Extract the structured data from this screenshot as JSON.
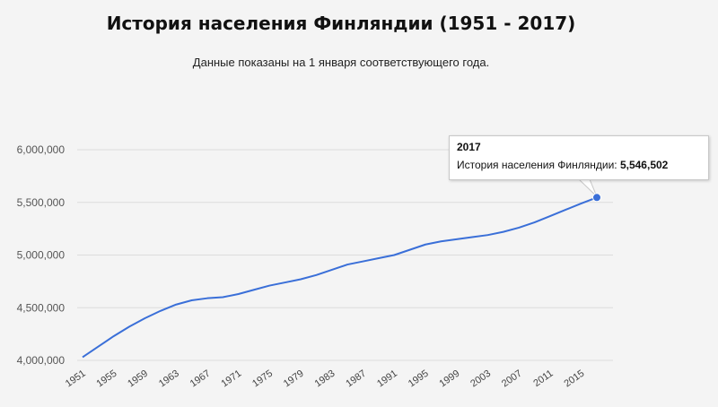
{
  "title": "История населения Финляндии (1951 - 2017)",
  "subtitle": "Данные показаны на 1 января соответствующего года.",
  "tooltip": {
    "year": "2017",
    "series_label": "История населения Финляндии:",
    "value": "5,546,502"
  },
  "colors": {
    "line": "#3a6fd8",
    "grid": "#dcdcdc",
    "background": "#f4f4f4"
  },
  "chart_data": {
    "type": "line",
    "title": "История населения Финляндии (1951 - 2017)",
    "subtitle": "Данные показаны на 1 января соответствующего года.",
    "xlabel": "",
    "ylabel": "",
    "ylim": [
      4000000,
      6000000
    ],
    "xlim": [
      1951,
      2017
    ],
    "yticks": [
      4000000,
      4500000,
      5000000,
      5500000,
      6000000
    ],
    "ytick_labels": [
      "4,000,000",
      "4,500,000",
      "5,000,000",
      "5,500,000",
      "6,000,000"
    ],
    "xticks": [
      1951,
      1955,
      1959,
      1963,
      1967,
      1971,
      1975,
      1979,
      1983,
      1987,
      1991,
      1995,
      1999,
      2003,
      2007,
      2011,
      2015
    ],
    "xtick_labels": [
      "1951",
      "1955",
      "1959",
      "1963",
      "1967",
      "1971",
      "1975",
      "1979",
      "1983",
      "1987",
      "1991",
      "1995",
      "1999",
      "2003",
      "2007",
      "2011",
      "2015"
    ],
    "grid": true,
    "legend": "none",
    "series": [
      {
        "name": "История населения Финляндии",
        "x": [
          1951,
          1953,
          1955,
          1957,
          1959,
          1961,
          1963,
          1965,
          1967,
          1969,
          1971,
          1973,
          1975,
          1977,
          1979,
          1981,
          1983,
          1985,
          1987,
          1989,
          1991,
          1993,
          1995,
          1997,
          1999,
          2001,
          2003,
          2005,
          2007,
          2009,
          2011,
          2013,
          2015,
          2017
        ],
        "values": [
          4030000,
          4130000,
          4230000,
          4320000,
          4400000,
          4470000,
          4530000,
          4570000,
          4590000,
          4600000,
          4630000,
          4670000,
          4710000,
          4740000,
          4770000,
          4810000,
          4860000,
          4910000,
          4940000,
          4970000,
          5000000,
          5050000,
          5100000,
          5130000,
          5150000,
          5170000,
          5190000,
          5220000,
          5260000,
          5310000,
          5370000,
          5430000,
          5490000,
          5546502
        ]
      }
    ],
    "highlight": {
      "x": 2017,
      "value": 5546502
    }
  }
}
